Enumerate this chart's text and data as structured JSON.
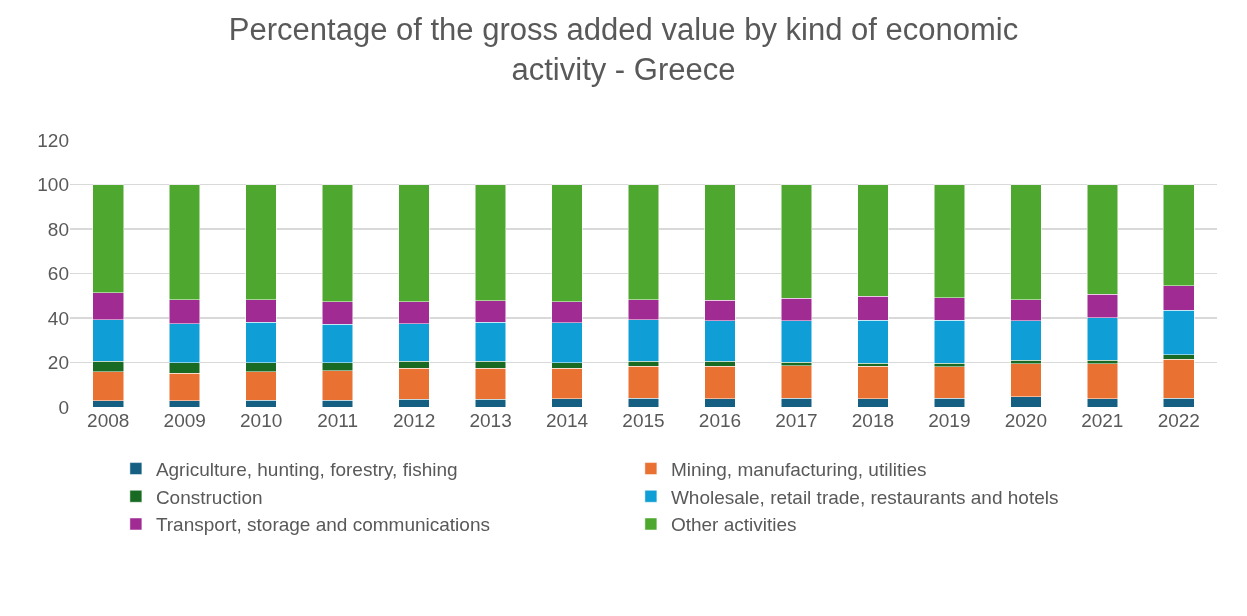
{
  "chart_data": {
    "type": "bar",
    "title": "Percentage of the gross added value by kind of economic activity - Greece",
    "stacked": true,
    "categories": [
      "2008",
      "2009",
      "2010",
      "2011",
      "2012",
      "2013",
      "2014",
      "2015",
      "2016",
      "2017",
      "2018",
      "2019",
      "2020",
      "2021",
      "2022"
    ],
    "series": [
      {
        "name": "Agriculture, hunting, forestry, fishing",
        "color": "#156082",
        "values": [
          2.9,
          2.9,
          3.1,
          3.1,
          3.4,
          3.4,
          3.7,
          4.0,
          3.7,
          4.0,
          3.7,
          4.0,
          4.5,
          3.7,
          4.0
        ]
      },
      {
        "name": "Mining, manufacturing, utilities",
        "color": "#e97132",
        "values": [
          12.9,
          12.2,
          12.7,
          13.2,
          14.1,
          14.1,
          13.8,
          14.3,
          14.6,
          14.6,
          14.6,
          14.0,
          15.0,
          15.8,
          17.4
        ]
      },
      {
        "name": "Construction",
        "color": "#196b24",
        "values": [
          4.8,
          4.9,
          4.2,
          3.5,
          3.1,
          3.1,
          2.3,
          2.3,
          2.3,
          1.6,
          1.4,
          1.7,
          1.6,
          1.6,
          2.0
        ]
      },
      {
        "name": "Wholesale, retail trade, restaurants and hotels",
        "color": "#0f9ed5",
        "values": [
          18.6,
          17.5,
          18.2,
          17.4,
          16.9,
          17.6,
          18.0,
          18.6,
          18.2,
          18.6,
          19.2,
          19.2,
          17.7,
          19.1,
          20.0
        ]
      },
      {
        "name": "Transport, storage and communications",
        "color": "#a02b93",
        "values": [
          12.2,
          10.8,
          10.1,
          10.0,
          9.7,
          9.6,
          9.6,
          9.1,
          9.2,
          10.1,
          10.8,
          10.3,
          9.5,
          10.4,
          11.1
        ]
      },
      {
        "name": "Other activities",
        "color": "#4ea72e",
        "values": [
          48.6,
          51.7,
          51.7,
          52.8,
          52.8,
          52.2,
          52.6,
          51.7,
          52.0,
          51.1,
          50.3,
          50.8,
          51.7,
          49.4,
          45.5
        ]
      }
    ],
    "ylim": [
      0,
      120
    ],
    "yticks": [
      0,
      20,
      40,
      60,
      80,
      100,
      120
    ],
    "grid": "y",
    "legend": "bottom"
  }
}
